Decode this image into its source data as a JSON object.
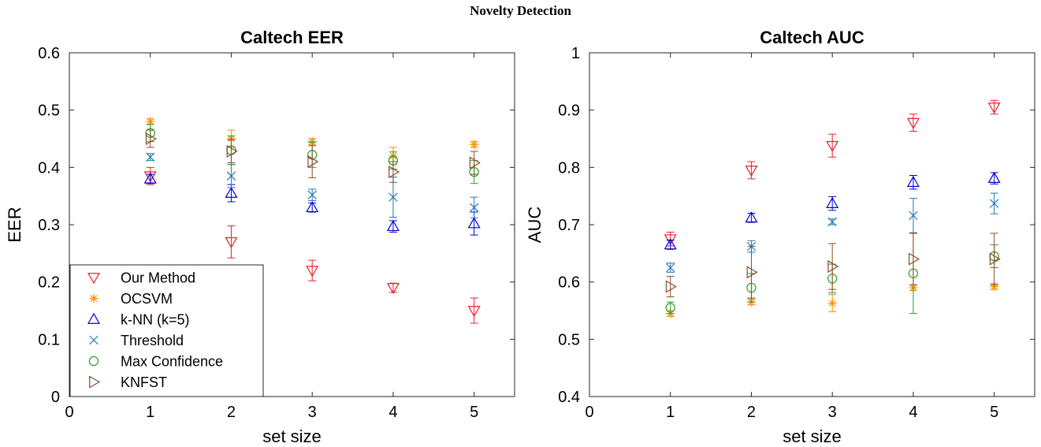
{
  "figure_title": "Novelty Detection",
  "chart_data": [
    {
      "type": "scatter",
      "title": "Caltech EER",
      "xlabel": "set size",
      "ylabel": "EER",
      "xlim": [
        0,
        5.5
      ],
      "ylim": [
        0,
        0.6
      ],
      "xticks": [
        0,
        1,
        2,
        3,
        4,
        5
      ],
      "yticks": [
        0,
        0.1,
        0.2,
        0.3,
        0.4,
        0.5,
        0.6
      ],
      "grid": false,
      "legend_position": "bottom-left",
      "series": [
        {
          "name": "Our Method",
          "marker": "triangle-down",
          "color": "#e8202a",
          "x": [
            1,
            2,
            3,
            4,
            5
          ],
          "y": [
            0.385,
            0.27,
            0.22,
            0.19,
            0.15
          ],
          "err": [
            0.015,
            0.028,
            0.018,
            0.008,
            0.022
          ]
        },
        {
          "name": "OCSVM",
          "marker": "asterisk",
          "color": "#ff8c00",
          "x": [
            1,
            2,
            3,
            4,
            5
          ],
          "y": [
            0.48,
            0.45,
            0.445,
            0.42,
            0.44
          ],
          "err": [
            0.005,
            0.015,
            0.005,
            0.015,
            0.005
          ]
        },
        {
          "name": "k-NN (k=5)",
          "marker": "triangle-up",
          "color": "#0000dd",
          "x": [
            1,
            2,
            3,
            4,
            5
          ],
          "y": [
            0.38,
            0.355,
            0.33,
            0.297,
            0.302
          ],
          "err": [
            0.008,
            0.015,
            0.008,
            0.01,
            0.02
          ]
        },
        {
          "name": "Threshold",
          "marker": "x",
          "color": "#1f77b4",
          "x": [
            1,
            2,
            3,
            4,
            5
          ],
          "y": [
            0.418,
            0.385,
            0.352,
            0.348,
            0.33
          ],
          "err": [
            0.006,
            0.02,
            0.01,
            0.035,
            0.018
          ]
        },
        {
          "name": "Max Confidence",
          "marker": "circle",
          "color": "#2ca02c",
          "x": [
            1,
            2,
            3,
            4,
            5
          ],
          "y": [
            0.46,
            0.43,
            0.422,
            0.412,
            0.392
          ],
          "err": [
            0.015,
            0.025,
            0.022,
            0.015,
            0.02
          ]
        },
        {
          "name": "KNFST",
          "marker": "triangle-right",
          "color": "#8c4a2a",
          "x": [
            1,
            2,
            3,
            4,
            5
          ],
          "y": [
            0.45,
            0.428,
            0.41,
            0.392,
            0.408
          ],
          "err": [
            0.015,
            0.02,
            0.028,
            0.018,
            0.02
          ]
        }
      ]
    },
    {
      "type": "scatter",
      "title": "Caltech AUC",
      "xlabel": "set size",
      "ylabel": "AUC",
      "xlim": [
        0,
        5.5
      ],
      "ylim": [
        0.4,
        1
      ],
      "xticks": [
        0,
        1,
        2,
        3,
        4,
        5
      ],
      "yticks": [
        0.4,
        0.5,
        0.6,
        0.7,
        0.8,
        0.9,
        1
      ],
      "grid": false,
      "series": [
        {
          "name": "Our Method",
          "marker": "triangle-down",
          "color": "#e8202a",
          "x": [
            1,
            2,
            3,
            4,
            5
          ],
          "y": [
            0.675,
            0.795,
            0.838,
            0.878,
            0.905
          ],
          "err": [
            0.012,
            0.015,
            0.02,
            0.015,
            0.012
          ]
        },
        {
          "name": "OCSVM",
          "marker": "asterisk",
          "color": "#ff8c00",
          "x": [
            1,
            2,
            3,
            4,
            5
          ],
          "y": [
            0.545,
            0.565,
            0.563,
            0.59,
            0.592
          ],
          "err": [
            0.005,
            0.005,
            0.015,
            0.005,
            0.005
          ]
        },
        {
          "name": "k-NN (k=5)",
          "marker": "triangle-up",
          "color": "#0000dd",
          "x": [
            1,
            2,
            3,
            4,
            5
          ],
          "y": [
            0.665,
            0.712,
            0.737,
            0.774,
            0.781
          ],
          "err": [
            0.008,
            0.008,
            0.012,
            0.012,
            0.01
          ]
        },
        {
          "name": "Threshold",
          "marker": "x",
          "color": "#1f77b4",
          "x": [
            1,
            2,
            3,
            4,
            5
          ],
          "y": [
            0.625,
            0.662,
            0.705,
            0.716,
            0.737
          ],
          "err": [
            0.008,
            0.01,
            0.005,
            0.03,
            0.018
          ]
        },
        {
          "name": "Max Confidence",
          "marker": "circle",
          "color": "#2ca02c",
          "x": [
            1,
            2,
            3,
            4,
            5
          ],
          "y": [
            0.555,
            0.59,
            0.606,
            0.615,
            0.645
          ],
          "err": [
            0.01,
            0.025,
            0.025,
            0.07,
            0.02
          ]
        },
        {
          "name": "KNFST",
          "marker": "triangle-right",
          "color": "#8c4a2a",
          "x": [
            1,
            2,
            3,
            4,
            5
          ],
          "y": [
            0.592,
            0.617,
            0.627,
            0.64,
            0.64
          ],
          "err": [
            0.018,
            0.045,
            0.04,
            0.045,
            0.045
          ]
        }
      ]
    }
  ]
}
